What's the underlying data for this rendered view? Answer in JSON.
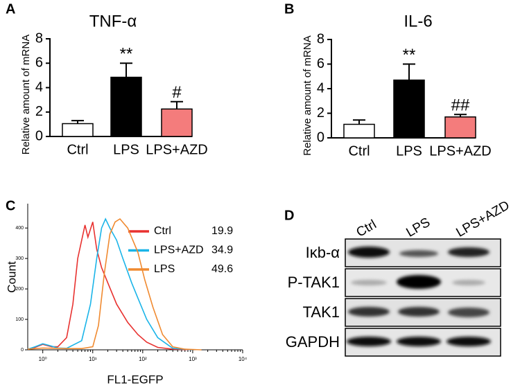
{
  "chart_data": [
    {
      "type": "bar",
      "panel": "A",
      "title": "TNF-α",
      "ylabel": "Relative amount of mRNA",
      "categories": [
        "Ctrl",
        "LPS",
        "LPS+AZD"
      ],
      "values": [
        1.05,
        4.85,
        2.25
      ],
      "errors": [
        0.25,
        1.15,
        0.6
      ],
      "colors": [
        "#ffffff",
        "#000000",
        "#f47c7c"
      ],
      "annotations": [
        null,
        "**",
        "#"
      ],
      "ylim": [
        0,
        8
      ],
      "yticks": [
        0,
        2,
        4,
        6,
        8
      ]
    },
    {
      "type": "bar",
      "panel": "B",
      "title": "IL-6",
      "ylabel": "Relative amount of mRNA",
      "categories": [
        "Ctrl",
        "LPS",
        "LPS+AZD"
      ],
      "values": [
        1.1,
        4.7,
        1.7
      ],
      "errors": [
        0.35,
        1.3,
        0.2
      ],
      "colors": [
        "#ffffff",
        "#000000",
        "#f47c7c"
      ],
      "annotations": [
        null,
        "**",
        "##"
      ],
      "ylim": [
        0,
        8
      ],
      "yticks": [
        0,
        2,
        4,
        6,
        8
      ]
    },
    {
      "type": "line",
      "panel": "C",
      "xlabel": "FL1-EGFP",
      "ylabel": "Count",
      "xscale": "log",
      "xlim": [
        0.5,
        10000
      ],
      "ylim": [
        0,
        480
      ],
      "xticks": [
        {
          "value": 1,
          "label": "10⁰"
        },
        {
          "value": 10,
          "label": "10¹"
        },
        {
          "value": 100,
          "label": "10²"
        },
        {
          "value": 1000,
          "label": "10³"
        },
        {
          "value": 10000,
          "label": "10⁴"
        }
      ],
      "yticks": [
        0,
        100,
        200,
        300,
        400
      ],
      "series": [
        {
          "name": "Ctrl",
          "stat": "19.9",
          "color": "#e8312f",
          "x": [
            0.5,
            0.7,
            1,
            1.5,
            2,
            3,
            4,
            5,
            6,
            7,
            8,
            10,
            12,
            15,
            20,
            30,
            50,
            80,
            120,
            200,
            400,
            1000
          ],
          "values": [
            2,
            8,
            18,
            10,
            10,
            40,
            150,
            300,
            360,
            410,
            370,
            420,
            330,
            270,
            220,
            150,
            90,
            50,
            25,
            8,
            2,
            0
          ]
        },
        {
          "name": "LPS+AZD",
          "stat": "34.9",
          "color": "#1ab4e8",
          "x": [
            0.5,
            0.7,
            1,
            1.5,
            2,
            3,
            6,
            9,
            12,
            15,
            18,
            22,
            30,
            40,
            60,
            80,
            120,
            200,
            400,
            1000
          ],
          "values": [
            2,
            10,
            20,
            12,
            6,
            5,
            30,
            150,
            300,
            400,
            430,
            400,
            360,
            300,
            220,
            170,
            100,
            40,
            5,
            0
          ]
        },
        {
          "name": "LPS",
          "stat": "49.6",
          "color": "#f08a30",
          "x": [
            0.5,
            1,
            3,
            6,
            10,
            13,
            17,
            22,
            28,
            35,
            50,
            80,
            110,
            160,
            250,
            400,
            700,
            1500
          ],
          "values": [
            2,
            6,
            4,
            4,
            10,
            80,
            250,
            380,
            420,
            430,
            400,
            320,
            230,
            140,
            50,
            10,
            2,
            0
          ]
        }
      ]
    }
  ],
  "blot": {
    "panel": "D",
    "lanes": [
      "Ctrl",
      "LPS",
      "LPS+AZD"
    ],
    "rows": [
      "Iκb-α",
      "P-TAK1",
      "TAK1",
      "GAPDH"
    ]
  }
}
